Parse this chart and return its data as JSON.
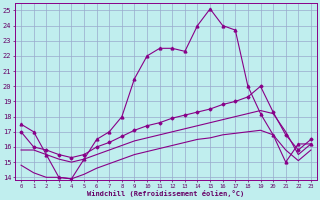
{
  "bg_color": "#c0eeee",
  "line_color": "#880088",
  "grid_color": "#99aacc",
  "xlabel": "Windchill (Refroidissement éolien,°C)",
  "tick_color": "#660066",
  "xlim_min": -0.5,
  "xlim_max": 23.5,
  "ylim_min": 13.8,
  "ylim_max": 25.5,
  "yticks": [
    14,
    15,
    16,
    17,
    18,
    19,
    20,
    21,
    22,
    23,
    24,
    25
  ],
  "xticks": [
    0,
    1,
    2,
    3,
    4,
    5,
    6,
    7,
    8,
    9,
    10,
    11,
    12,
    13,
    14,
    15,
    16,
    17,
    18,
    19,
    20,
    21,
    22,
    23
  ],
  "line1_x": [
    0,
    1,
    2,
    3,
    4,
    5,
    6,
    7,
    8,
    9,
    10,
    11,
    12,
    13,
    14,
    15,
    16,
    17,
    18,
    19,
    20,
    21,
    22,
    23
  ],
  "line1_y": [
    17.5,
    17.0,
    15.5,
    14.0,
    13.9,
    15.2,
    16.5,
    17.0,
    18.0,
    20.5,
    22.0,
    22.5,
    22.5,
    22.3,
    24.0,
    25.1,
    24.0,
    23.7,
    20.0,
    18.2,
    16.8,
    15.0,
    16.2,
    16.2
  ],
  "line2_x": [
    0,
    1,
    2,
    3,
    4,
    5,
    6,
    7,
    8,
    9,
    10,
    11,
    12,
    13,
    14,
    15,
    16,
    17,
    18,
    19,
    20,
    21,
    22,
    23
  ],
  "line2_y": [
    17.0,
    16.0,
    15.8,
    15.5,
    15.3,
    15.5,
    16.0,
    16.3,
    16.7,
    17.1,
    17.4,
    17.6,
    17.9,
    18.1,
    18.3,
    18.5,
    18.8,
    19.0,
    19.3,
    20.0,
    18.3,
    16.8,
    15.8,
    16.5
  ],
  "line3_x": [
    0,
    1,
    2,
    3,
    4,
    5,
    6,
    7,
    8,
    9,
    10,
    11,
    12,
    13,
    14,
    15,
    16,
    17,
    18,
    19,
    20,
    21,
    22,
    23
  ],
  "line3_y": [
    15.8,
    15.8,
    15.5,
    15.2,
    15.0,
    15.2,
    15.5,
    15.8,
    16.1,
    16.4,
    16.6,
    16.8,
    17.0,
    17.2,
    17.4,
    17.6,
    17.8,
    18.0,
    18.2,
    18.4,
    18.2,
    17.0,
    15.5,
    16.2
  ],
  "line4_x": [
    0,
    1,
    2,
    3,
    4,
    5,
    6,
    7,
    8,
    9,
    10,
    11,
    12,
    13,
    14,
    15,
    16,
    17,
    18,
    19,
    20,
    21,
    22,
    23
  ],
  "line4_y": [
    14.8,
    14.3,
    14.0,
    14.0,
    13.9,
    14.2,
    14.6,
    14.9,
    15.2,
    15.5,
    15.7,
    15.9,
    16.1,
    16.3,
    16.5,
    16.6,
    16.8,
    16.9,
    17.0,
    17.1,
    16.8,
    15.8,
    15.1,
    15.8
  ]
}
